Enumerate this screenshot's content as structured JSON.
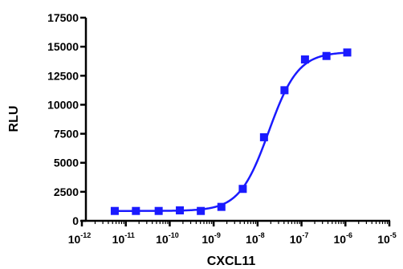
{
  "chart_data": {
    "type": "scatter",
    "title": "",
    "xlabel": "CXCL11",
    "ylabel": "RLU",
    "x_scale": "log",
    "xlim": [
      1e-12,
      1e-05
    ],
    "ylim": [
      0,
      17500
    ],
    "x_ticks": [
      {
        "base": "10",
        "exp": "-12",
        "value": 1e-12
      },
      {
        "base": "10",
        "exp": "-11",
        "value": 1e-11
      },
      {
        "base": "10",
        "exp": "-10",
        "value": 1e-10
      },
      {
        "base": "10",
        "exp": "-9",
        "value": 1e-09
      },
      {
        "base": "10",
        "exp": "-8",
        "value": 1e-08
      },
      {
        "base": "10",
        "exp": "-7",
        "value": 1e-07
      },
      {
        "base": "10",
        "exp": "-6",
        "value": 1e-06
      },
      {
        "base": "10",
        "exp": "-5",
        "value": 1e-05
      }
    ],
    "y_ticks": [
      {
        "label": "0",
        "value": 0
      },
      {
        "label": "2500",
        "value": 2500
      },
      {
        "label": "5000",
        "value": 5000
      },
      {
        "label": "7500",
        "value": 7500
      },
      {
        "label": "10000",
        "value": 10000
      },
      {
        "label": "12500",
        "value": 12500
      },
      {
        "label": "15000",
        "value": 15000
      },
      {
        "label": "17500",
        "value": 17500
      }
    ],
    "grid": false,
    "legend": "none",
    "color": "#1a1aff",
    "series": [
      {
        "marker": "square",
        "points": [
          {
            "x": 5.6e-12,
            "y": 850
          },
          {
            "x": 1.7e-11,
            "y": 850
          },
          {
            "x": 5.6e-11,
            "y": 850
          },
          {
            "x": 1.7e-10,
            "y": 900
          },
          {
            "x": 5.1e-10,
            "y": 850
          },
          {
            "x": 1.5e-09,
            "y": 1200
          },
          {
            "x": 4.6e-09,
            "y": 2750
          },
          {
            "x": 1.4e-08,
            "y": 7200
          },
          {
            "x": 4.1e-08,
            "y": 11250
          },
          {
            "x": 1.2e-07,
            "y": 13900
          },
          {
            "x": 3.7e-07,
            "y": 14200
          },
          {
            "x": 1.1e-06,
            "y": 14500
          }
        ]
      }
    ],
    "fit_curve": {
      "type": "four-parameter-logistic",
      "bottom": 850,
      "top": 14550,
      "ec50": 1.8e-08,
      "hill": 1.3,
      "x_range": [
        5.6e-12,
        1.1e-06
      ]
    }
  }
}
